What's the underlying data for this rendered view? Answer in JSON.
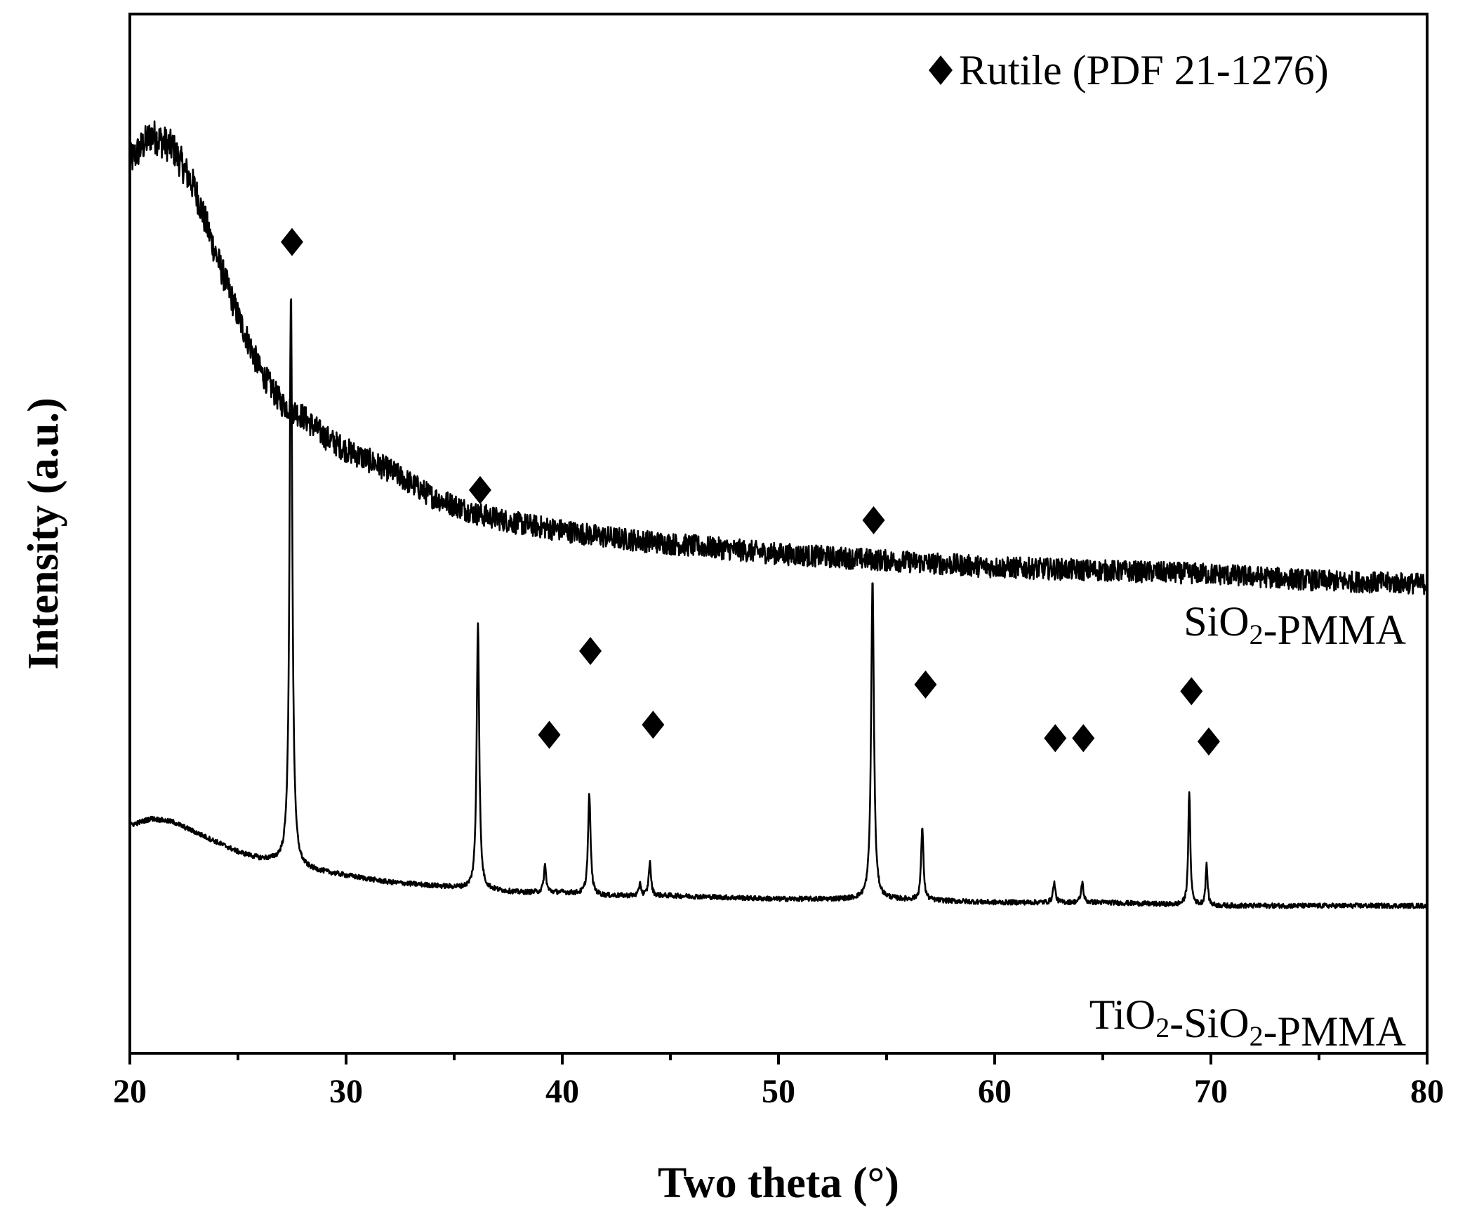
{
  "chart_data": {
    "type": "line",
    "xlabel": "Two theta (°)",
    "ylabel": "Intensity (a.u.)",
    "xlim": [
      20,
      80
    ],
    "xticks": [
      20,
      30,
      40,
      50,
      60,
      70,
      80
    ],
    "y_scale": "arbitrary units, no tick labels",
    "grid": false,
    "legend": {
      "text": "Rutile (PDF 21-1276)",
      "marker": "diamond",
      "placement": "top-right"
    },
    "series": [
      {
        "name": "SiO2-PMMA",
        "label_parts": [
          "SiO",
          "2",
          "-PMMA"
        ],
        "noise_level": 0.05,
        "x": [
          20,
          21,
          22,
          23,
          24,
          25,
          26,
          27,
          28,
          29,
          30,
          32,
          34,
          36,
          38,
          40,
          42,
          45,
          50,
          55,
          60,
          65,
          70,
          75,
          80
        ],
        "y": [
          1.18,
          1.22,
          1.2,
          1.14,
          1.04,
          0.95,
          0.87,
          0.82,
          0.8,
          0.77,
          0.75,
          0.72,
          0.68,
          0.655,
          0.64,
          0.63,
          0.62,
          0.61,
          0.595,
          0.585,
          0.575,
          0.57,
          0.565,
          0.555,
          0.55
        ]
      },
      {
        "name": "TiO2-SiO2-PMMA",
        "label_parts": [
          "TiO",
          "2",
          "-SiO",
          "2",
          "-PMMA"
        ],
        "noise_level": 0.012,
        "x": [
          20,
          21,
          22,
          23,
          24,
          25,
          26,
          27,
          28,
          29,
          30,
          32,
          34,
          36,
          38,
          40,
          42,
          45,
          50,
          55,
          60,
          65,
          70,
          75,
          80
        ],
        "y": [
          0.19,
          0.2,
          0.195,
          0.18,
          0.165,
          0.15,
          0.14,
          0.135,
          0.125,
          0.12,
          0.115,
          0.105,
          0.1,
          0.095,
          0.09,
          0.09,
          0.085,
          0.085,
          0.08,
          0.08,
          0.075,
          0.075,
          0.07,
          0.07,
          0.07
        ],
        "peaks": [
          {
            "x": 27.45,
            "height": 0.86,
            "width": 0.12
          },
          {
            "x": 36.1,
            "height": 0.4,
            "width": 0.11
          },
          {
            "x": 39.2,
            "height": 0.04,
            "width": 0.1
          },
          {
            "x": 41.25,
            "height": 0.15,
            "width": 0.11
          },
          {
            "x": 43.6,
            "height": 0.02,
            "width": 0.08
          },
          {
            "x": 44.05,
            "height": 0.05,
            "width": 0.1
          },
          {
            "x": 54.35,
            "height": 0.48,
            "width": 0.12
          },
          {
            "x": 56.65,
            "height": 0.11,
            "width": 0.1
          },
          {
            "x": 62.75,
            "height": 0.03,
            "width": 0.1
          },
          {
            "x": 64.05,
            "height": 0.03,
            "width": 0.1
          },
          {
            "x": 69.0,
            "height": 0.17,
            "width": 0.09
          },
          {
            "x": 69.8,
            "height": 0.06,
            "width": 0.09
          }
        ]
      }
    ],
    "markers": [
      {
        "x": 27.5,
        "y": 1.06
      },
      {
        "x": 36.2,
        "y": 0.69
      },
      {
        "x": 39.4,
        "y": 0.325
      },
      {
        "x": 41.3,
        "y": 0.45
      },
      {
        "x": 44.2,
        "y": 0.34
      },
      {
        "x": 54.4,
        "y": 0.645
      },
      {
        "x": 56.8,
        "y": 0.4
      },
      {
        "x": 62.8,
        "y": 0.32
      },
      {
        "x": 64.1,
        "y": 0.32
      },
      {
        "x": 69.1,
        "y": 0.39
      },
      {
        "x": 69.9,
        "y": 0.315
      }
    ]
  }
}
